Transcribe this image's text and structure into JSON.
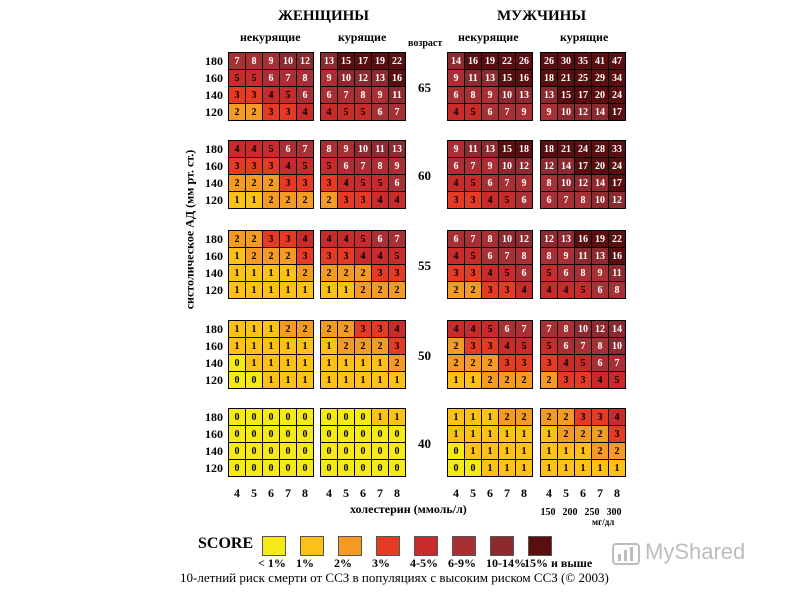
{
  "header": {
    "women": "ЖЕНЩИНЫ",
    "men": "МУЖЧИНЫ",
    "nonsmoking": "некурящие",
    "smoking": "курящие",
    "age_label": "возраст"
  },
  "axes": {
    "ylabel": "систолическое АД (мм рт. ст.)",
    "xlabel": "холестерин (ммоль/л)",
    "x_ticks": [
      "4",
      "5",
      "6",
      "7",
      "8"
    ],
    "x_ticks_mg": [
      "150",
      "200",
      "250",
      "300"
    ],
    "mg_unit": "мг/дл",
    "y_ticks": [
      "180",
      "160",
      "140",
      "120"
    ]
  },
  "legend": {
    "title": "SCORE",
    "items": [
      {
        "label": "< 1%",
        "color": "#f6ea16"
      },
      {
        "label": "1%",
        "color": "#fbc117"
      },
      {
        "label": "2%",
        "color": "#f59a22"
      },
      {
        "label": "3%",
        "color": "#e63a25"
      },
      {
        "label": "4-5%",
        "color": "#c92a2a"
      },
      {
        "label": "6-9%",
        "color": "#a83035"
      },
      {
        "label": "10-14%",
        "color": "#8c2a2f"
      },
      {
        "label": "15% и выше",
        "color": "#5a0e10"
      }
    ]
  },
  "caption": "10-летний риск смерти от ССЗ в популяциях с высоким риском ССЗ (© 2003)",
  "watermark": "MyShared",
  "chart_data": {
    "type": "heatmap",
    "title": "SCORE",
    "xlabel": "холестерин (ммоль/л)",
    "ylabel": "систолическое АД (мм рт. ст.)",
    "cholesterol": [
      4,
      5,
      6,
      7,
      8
    ],
    "systolic_bp": [
      180,
      160,
      140,
      120
    ],
    "ages": [
      65,
      60,
      55,
      50,
      40
    ],
    "blocks": [
      {
        "sex": "ЖЕНЩИНЫ",
        "smoking": "некурящие",
        "age": 65,
        "values": [
          [
            7,
            8,
            9,
            10,
            12
          ],
          [
            5,
            5,
            6,
            7,
            8
          ],
          [
            3,
            3,
            4,
            5,
            6
          ],
          [
            2,
            2,
            3,
            3,
            4
          ]
        ]
      },
      {
        "sex": "ЖЕНЩИНЫ",
        "smoking": "курящие",
        "age": 65,
        "values": [
          [
            13,
            15,
            17,
            19,
            22
          ],
          [
            9,
            10,
            12,
            13,
            16
          ],
          [
            6,
            7,
            8,
            9,
            11
          ],
          [
            4,
            5,
            5,
            6,
            7
          ]
        ]
      },
      {
        "sex": "МУЖЧИНЫ",
        "smoking": "некурящие",
        "age": 65,
        "values": [
          [
            14,
            16,
            19,
            22,
            26
          ],
          [
            9,
            11,
            13,
            15,
            16
          ],
          [
            6,
            8,
            9,
            10,
            13
          ],
          [
            4,
            5,
            6,
            7,
            9
          ]
        ]
      },
      {
        "sex": "МУЖЧИНЫ",
        "smoking": "курящие",
        "age": 65,
        "values": [
          [
            26,
            30,
            35,
            41,
            47
          ],
          [
            18,
            21,
            25,
            29,
            34
          ],
          [
            13,
            15,
            17,
            20,
            24
          ],
          [
            9,
            10,
            12,
            14,
            17
          ]
        ]
      },
      {
        "sex": "ЖЕНЩИНЫ",
        "smoking": "некурящие",
        "age": 60,
        "values": [
          [
            4,
            4,
            5,
            6,
            7
          ],
          [
            3,
            3,
            3,
            4,
            5
          ],
          [
            2,
            2,
            2,
            3,
            3
          ],
          [
            1,
            1,
            2,
            2,
            2
          ]
        ]
      },
      {
        "sex": "ЖЕНЩИНЫ",
        "smoking": "курящие",
        "age": 60,
        "values": [
          [
            8,
            9,
            10,
            11,
            13
          ],
          [
            5,
            6,
            7,
            8,
            9
          ],
          [
            3,
            4,
            5,
            5,
            6
          ],
          [
            2,
            3,
            3,
            4,
            4
          ]
        ]
      },
      {
        "sex": "МУЖЧИНЫ",
        "smoking": "некурящие",
        "age": 60,
        "values": [
          [
            9,
            11,
            13,
            15,
            18
          ],
          [
            6,
            7,
            9,
            10,
            12
          ],
          [
            4,
            5,
            6,
            7,
            9
          ],
          [
            3,
            3,
            4,
            5,
            6
          ]
        ]
      },
      {
        "sex": "МУЖЧИНЫ",
        "smoking": "курящие",
        "age": 60,
        "values": [
          [
            18,
            21,
            24,
            28,
            33
          ],
          [
            12,
            14,
            17,
            20,
            24
          ],
          [
            8,
            10,
            12,
            14,
            17
          ],
          [
            6,
            7,
            8,
            10,
            12
          ]
        ]
      },
      {
        "sex": "ЖЕНЩИНЫ",
        "smoking": "некурящие",
        "age": 55,
        "values": [
          [
            2,
            2,
            3,
            3,
            4
          ],
          [
            1,
            2,
            2,
            2,
            3
          ],
          [
            1,
            1,
            1,
            1,
            2
          ],
          [
            1,
            1,
            1,
            1,
            1
          ]
        ]
      },
      {
        "sex": "ЖЕНЩИНЫ",
        "smoking": "курящие",
        "age": 55,
        "values": [
          [
            4,
            4,
            5,
            6,
            7
          ],
          [
            3,
            3,
            4,
            4,
            5
          ],
          [
            2,
            2,
            2,
            3,
            3
          ],
          [
            1,
            1,
            2,
            2,
            2
          ]
        ]
      },
      {
        "sex": "МУЖЧИНЫ",
        "smoking": "некурящие",
        "age": 55,
        "values": [
          [
            6,
            7,
            8,
            10,
            12
          ],
          [
            4,
            5,
            6,
            7,
            8
          ],
          [
            3,
            3,
            4,
            5,
            6
          ],
          [
            2,
            2,
            3,
            3,
            4
          ]
        ]
      },
      {
        "sex": "МУЖЧИНЫ",
        "smoking": "курящие",
        "age": 55,
        "values": [
          [
            12,
            13,
            16,
            19,
            22
          ],
          [
            8,
            9,
            11,
            13,
            16
          ],
          [
            5,
            6,
            8,
            9,
            11
          ],
          [
            4,
            4,
            5,
            6,
            8
          ]
        ]
      },
      {
        "sex": "ЖЕНЩИНЫ",
        "smoking": "некурящие",
        "age": 50,
        "values": [
          [
            1,
            1,
            1,
            2,
            2
          ],
          [
            1,
            1,
            1,
            1,
            1
          ],
          [
            0,
            1,
            1,
            1,
            1
          ],
          [
            0,
            0,
            1,
            1,
            1
          ]
        ]
      },
      {
        "sex": "ЖЕНЩИНЫ",
        "smoking": "курящие",
        "age": 50,
        "values": [
          [
            2,
            2,
            3,
            3,
            4
          ],
          [
            1,
            2,
            2,
            2,
            3
          ],
          [
            1,
            1,
            1,
            1,
            2
          ],
          [
            1,
            1,
            1,
            1,
            1
          ]
        ]
      },
      {
        "sex": "МУЖЧИНЫ",
        "smoking": "некурящие",
        "age": 50,
        "values": [
          [
            4,
            4,
            5,
            6,
            7
          ],
          [
            2,
            3,
            3,
            4,
            5
          ],
          [
            2,
            2,
            2,
            3,
            3
          ],
          [
            1,
            1,
            2,
            2,
            2
          ]
        ]
      },
      {
        "sex": "МУЖЧИНЫ",
        "smoking": "курящие",
        "age": 50,
        "values": [
          [
            7,
            8,
            10,
            12,
            14
          ],
          [
            5,
            6,
            7,
            8,
            10
          ],
          [
            3,
            4,
            5,
            6,
            7
          ],
          [
            2,
            3,
            3,
            4,
            5
          ]
        ]
      },
      {
        "sex": "ЖЕНЩИНЫ",
        "smoking": "некурящие",
        "age": 40,
        "values": [
          [
            0,
            0,
            0,
            0,
            0
          ],
          [
            0,
            0,
            0,
            0,
            0
          ],
          [
            0,
            0,
            0,
            0,
            0
          ],
          [
            0,
            0,
            0,
            0,
            0
          ]
        ]
      },
      {
        "sex": "ЖЕНЩИНЫ",
        "smoking": "курящие",
        "age": 40,
        "values": [
          [
            0,
            0,
            0,
            1,
            1
          ],
          [
            0,
            0,
            0,
            0,
            0
          ],
          [
            0,
            0,
            0,
            0,
            0
          ],
          [
            0,
            0,
            0,
            0,
            0
          ]
        ]
      },
      {
        "sex": "МУЖЧИНЫ",
        "smoking": "некурящие",
        "age": 40,
        "values": [
          [
            1,
            1,
            1,
            2,
            2
          ],
          [
            1,
            1,
            1,
            1,
            1
          ],
          [
            0,
            1,
            1,
            1,
            1
          ],
          [
            0,
            0,
            1,
            1,
            1
          ]
        ]
      },
      {
        "sex": "МУЖЧИНЫ",
        "smoking": "курящие",
        "age": 40,
        "values": [
          [
            2,
            2,
            3,
            3,
            4
          ],
          [
            1,
            2,
            2,
            2,
            3
          ],
          [
            1,
            1,
            1,
            2,
            2
          ],
          [
            1,
            1,
            1,
            1,
            1
          ]
        ]
      }
    ]
  }
}
